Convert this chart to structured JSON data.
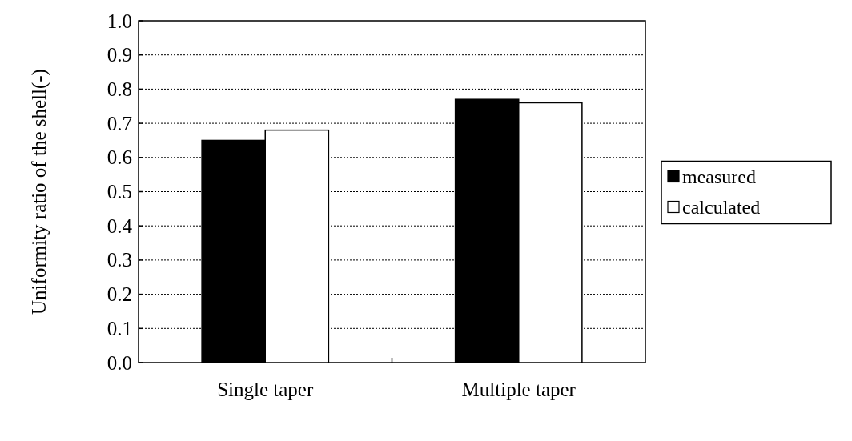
{
  "chart_data": {
    "type": "bar",
    "ylabel": "Uniformity ratio of the shell(-)",
    "categories": [
      "Single taper",
      "Multiple taper"
    ],
    "series": [
      {
        "name": "measured",
        "color": "#000000",
        "values": [
          0.65,
          0.77
        ]
      },
      {
        "name": "calculated",
        "color": "#ffffff",
        "values": [
          0.68,
          0.76
        ]
      }
    ],
    "ylim": [
      0,
      1
    ],
    "yticks": [
      {
        "value": 0,
        "label": "0.0"
      },
      {
        "value": 0.1,
        "label": "0.1"
      },
      {
        "value": 0.2,
        "label": "0.2"
      },
      {
        "value": 0.3,
        "label": "0.3"
      },
      {
        "value": 0.4,
        "label": "0.4"
      },
      {
        "value": 0.5,
        "label": "0.5"
      },
      {
        "value": 0.6,
        "label": "0.6"
      },
      {
        "value": 0.7,
        "label": "0.7"
      },
      {
        "value": 0.8,
        "label": "0.8"
      },
      {
        "value": 0.9,
        "label": "0.9"
      },
      {
        "value": 1,
        "label": "1.0"
      }
    ],
    "grid": "y",
    "legend": "right"
  }
}
